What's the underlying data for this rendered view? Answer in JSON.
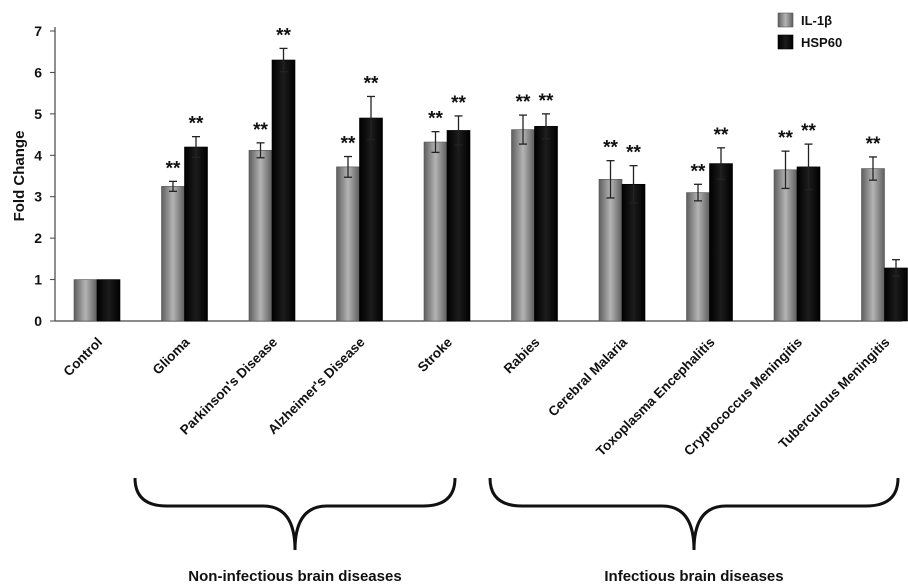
{
  "chart_data": {
    "type": "bar",
    "title": "",
    "xlabel": "",
    "ylabel": "Fold Change",
    "ylim": [
      0,
      7
    ],
    "yticks": [
      0,
      1,
      2,
      3,
      4,
      5,
      6,
      7
    ],
    "grid": false,
    "legend_position": "top-right",
    "categories": [
      "Control",
      "Glioma",
      "Parkinson's Disease",
      "Alzheimer's Disease",
      "Stroke",
      "Rabies",
      "Cerebral Malaria",
      "Toxoplasma Encephalitis",
      "Cryptococcus Meningitis",
      "Tuberculous Meningitis"
    ],
    "series": [
      {
        "name": "IL-1β",
        "color": "#8c8c8c",
        "values": [
          1.0,
          3.25,
          4.12,
          3.72,
          4.32,
          4.62,
          3.42,
          3.1,
          3.65,
          3.68
        ],
        "errors": [
          0.0,
          0.12,
          0.18,
          0.25,
          0.25,
          0.35,
          0.45,
          0.2,
          0.45,
          0.28
        ],
        "significance": [
          "",
          "**",
          "**",
          "**",
          "**",
          "**",
          "**",
          "**",
          "**",
          "**"
        ]
      },
      {
        "name": "HSP60",
        "color": "#0a0a0a",
        "values": [
          1.0,
          4.2,
          6.3,
          4.9,
          4.6,
          4.7,
          3.3,
          3.8,
          3.72,
          1.28
        ],
        "errors": [
          0.0,
          0.25,
          0.28,
          0.52,
          0.35,
          0.3,
          0.45,
          0.38,
          0.55,
          0.2
        ],
        "significance": [
          "",
          "**",
          "**",
          "**",
          "**",
          "**",
          "**",
          "**",
          "**",
          ""
        ]
      }
    ],
    "groups": [
      {
        "label": "Non-infectious brain diseases",
        "from": 1,
        "to": 4
      },
      {
        "label": "Infectious brain diseases",
        "from": 5,
        "to": 9
      }
    ]
  }
}
